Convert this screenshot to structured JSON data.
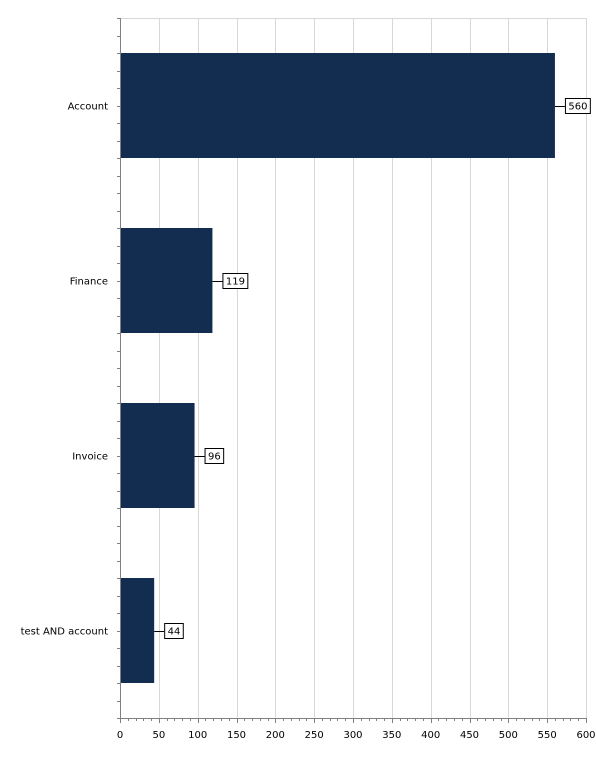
{
  "chart_data": {
    "type": "bar",
    "orientation": "horizontal",
    "categories": [
      "Account",
      "Finance",
      "Invoice",
      "test AND account"
    ],
    "values": [
      560,
      119,
      96,
      44
    ],
    "xlim": [
      0,
      600
    ],
    "xticks": [
      0,
      50,
      100,
      150,
      200,
      250,
      300,
      350,
      400,
      450,
      500,
      550,
      600
    ],
    "grid": true,
    "data_labels": true,
    "colors": {
      "bar": "#122d50"
    }
  }
}
